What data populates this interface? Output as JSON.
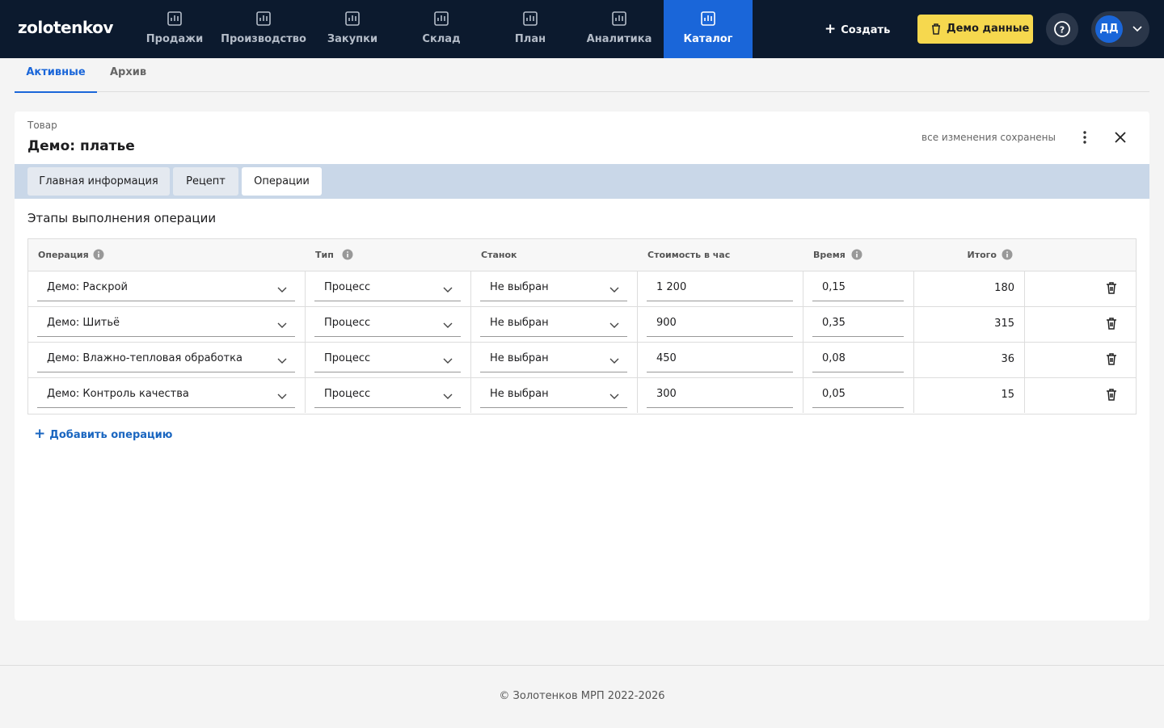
{
  "nav": {
    "logo": "zolotenkov",
    "items": [
      "Продажи",
      "Производство",
      "Закупки",
      "Склад",
      "План",
      "Аналитика",
      "Каталог"
    ],
    "create": "Создать",
    "demo": "Демо данные",
    "avatar": "ДД"
  },
  "tabs": [
    "Активные",
    "Архив"
  ],
  "card": {
    "label": "Товар",
    "title": "Демо: платье",
    "status": "все изменения сохранены"
  },
  "subtabs": [
    "Главная информация",
    "Рецепт",
    "Операции"
  ],
  "section_title": "Этапы выполнения операции",
  "table": {
    "columns": [
      "Операция",
      "Тип",
      "Станок",
      "Стоимость в час",
      "Время",
      "Итого"
    ],
    "rows": [
      [
        "Демо: Раскрой",
        "Процесс",
        "Не выбран",
        "1 200",
        "0,15",
        "180"
      ],
      [
        "Демо: Шитьё",
        "Процесс",
        "Не выбран",
        "900",
        "0,35",
        "315"
      ],
      [
        "Демо: Влажно-тепловая обработка",
        "Процесс",
        "Не выбран",
        "450",
        "0,08",
        "36"
      ],
      [
        "Демо: Контроль качества",
        "Процесс",
        "Не выбран",
        "300",
        "0,05",
        "15"
      ]
    ]
  },
  "add": "Добавить операцию",
  "footer": "© Золотенков МРП 2022-2026"
}
